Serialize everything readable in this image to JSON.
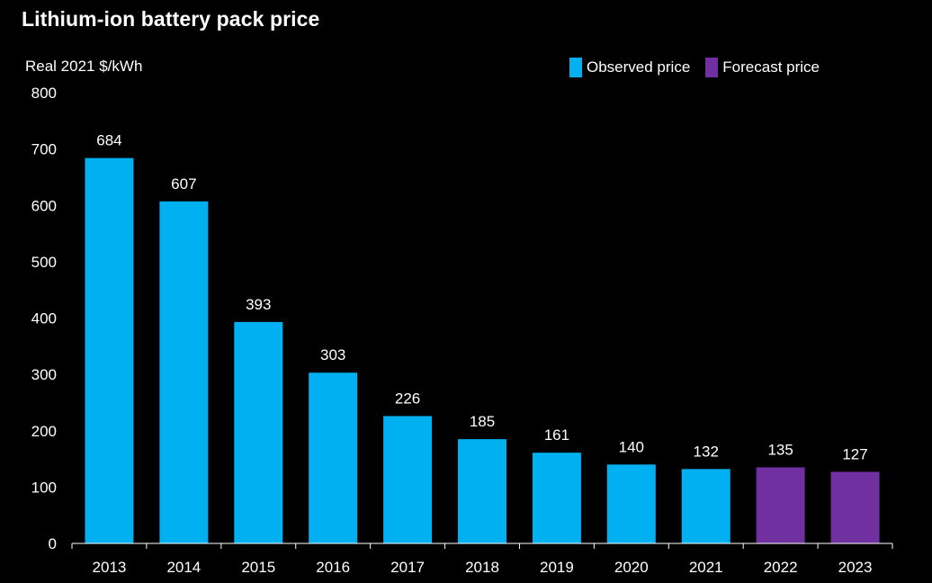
{
  "chart_data": {
    "type": "bar",
    "title": "Lithium-ion battery pack price",
    "ylabel": "Real 2021 $/kWh",
    "xlabel": "",
    "ylim": [
      0,
      800
    ],
    "yticks": [
      0,
      100,
      200,
      300,
      400,
      500,
      600,
      700,
      800
    ],
    "grid": false,
    "legend_position": "top-right",
    "categories": [
      "2013",
      "2014",
      "2015",
      "2016",
      "2017",
      "2018",
      "2019",
      "2020",
      "2021",
      "2022",
      "2023"
    ],
    "values": [
      684,
      607,
      393,
      303,
      226,
      185,
      161,
      140,
      132,
      135,
      127
    ],
    "bar_series": [
      "observed",
      "observed",
      "observed",
      "observed",
      "observed",
      "observed",
      "observed",
      "observed",
      "observed",
      "forecast",
      "forecast"
    ],
    "series": [
      {
        "key": "observed",
        "name": "Observed price",
        "color": "#00B0F0"
      },
      {
        "key": "forecast",
        "name": "Forecast price",
        "color": "#7030A0"
      }
    ]
  },
  "colors": {
    "background": "#000000",
    "text": "#FFFFFF",
    "axis": "#FFFFFF"
  }
}
